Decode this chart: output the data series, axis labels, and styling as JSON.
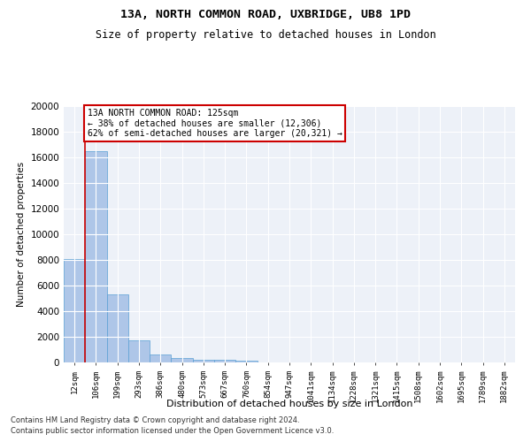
{
  "title_line1": "13A, NORTH COMMON ROAD, UXBRIDGE, UB8 1PD",
  "title_line2": "Size of property relative to detached houses in London",
  "xlabel": "Distribution of detached houses by size in London",
  "ylabel": "Number of detached properties",
  "bar_labels": [
    "12sqm",
    "106sqm",
    "199sqm",
    "293sqm",
    "386sqm",
    "480sqm",
    "573sqm",
    "667sqm",
    "760sqm",
    "854sqm",
    "947sqm",
    "1041sqm",
    "1134sqm",
    "1228sqm",
    "1321sqm",
    "1415sqm",
    "1508sqm",
    "1602sqm",
    "1695sqm",
    "1789sqm",
    "1882sqm"
  ],
  "bar_values": [
    8050,
    16500,
    5300,
    1750,
    650,
    320,
    200,
    175,
    145,
    0,
    0,
    0,
    0,
    0,
    0,
    0,
    0,
    0,
    0,
    0,
    0
  ],
  "bar_color": "#aec6e8",
  "bar_edge_color": "#5a9fd4",
  "property_line_color": "#cc0000",
  "annotation_text": "13A NORTH COMMON ROAD: 125sqm\n← 38% of detached houses are smaller (12,306)\n62% of semi-detached houses are larger (20,321) →",
  "annotation_box_color": "#ffffff",
  "annotation_box_edgecolor": "#cc0000",
  "ylim": [
    0,
    20000
  ],
  "yticks": [
    0,
    2000,
    4000,
    6000,
    8000,
    10000,
    12000,
    14000,
    16000,
    18000,
    20000
  ],
  "background_color": "#edf1f8",
  "grid_color": "#ffffff",
  "footer_line1": "Contains HM Land Registry data © Crown copyright and database right 2024.",
  "footer_line2": "Contains public sector information licensed under the Open Government Licence v3.0."
}
